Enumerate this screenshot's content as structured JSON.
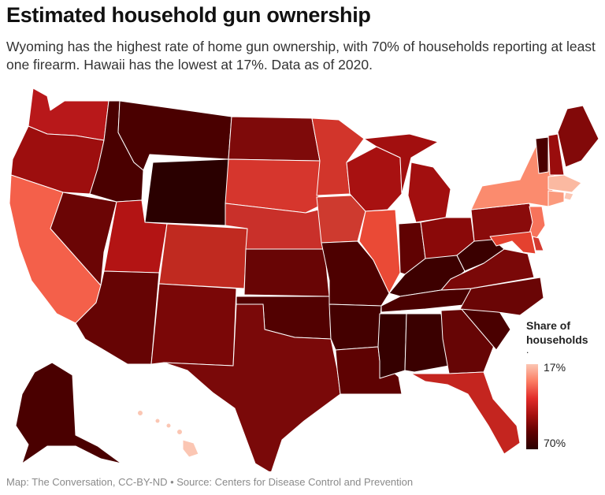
{
  "title": "Estimated household gun ownership",
  "subtitle": "Wyoming has the highest rate of home gun ownership, with 70% of households reporting at least one firearm. Hawaii has the lowest at 17%. Data as of 2020.",
  "legend": {
    "title": "Share of households",
    "dot": ".",
    "min_label": "17%",
    "max_label": "70%"
  },
  "color_scale": [
    "#fbc6b3",
    "#fb7d63",
    "#e22c2a",
    "#a5100f",
    "#5e0000",
    "#2a0000"
  ],
  "source": "Map: The Conversation, CC-BY-ND • Source: Centers for Disease Control and Prevention",
  "states": [
    {
      "name": "Washington",
      "abbr": "WA",
      "color": "#b8181a"
    },
    {
      "name": "Oregon",
      "abbr": "OR",
      "color": "#9d0e0e"
    },
    {
      "name": "California",
      "abbr": "CA",
      "color": "#f4604a"
    },
    {
      "name": "Nevada",
      "abbr": "NV",
      "color": "#6b0505"
    },
    {
      "name": "Idaho",
      "abbr": "ID",
      "color": "#4a0000"
    },
    {
      "name": "Montana",
      "abbr": "MT",
      "color": "#4a0000"
    },
    {
      "name": "Wyoming",
      "abbr": "WY",
      "color": "#2a0000"
    },
    {
      "name": "Utah",
      "abbr": "UT",
      "color": "#b31414"
    },
    {
      "name": "Arizona",
      "abbr": "AZ",
      "color": "#660404"
    },
    {
      "name": "Colorado",
      "abbr": "CO",
      "color": "#c02a20"
    },
    {
      "name": "New Mexico",
      "abbr": "NM",
      "color": "#7a0707"
    },
    {
      "name": "North Dakota",
      "abbr": "ND",
      "color": "#7e0a0a"
    },
    {
      "name": "South Dakota",
      "abbr": "SD",
      "color": "#d6362d"
    },
    {
      "name": "Nebraska",
      "abbr": "NE",
      "color": "#c9302a"
    },
    {
      "name": "Kansas",
      "abbr": "KS",
      "color": "#680505"
    },
    {
      "name": "Oklahoma",
      "abbr": "OK",
      "color": "#520101"
    },
    {
      "name": "Texas",
      "abbr": "TX",
      "color": "#7a0909"
    },
    {
      "name": "Minnesota",
      "abbr": "MN",
      "color": "#d2352b"
    },
    {
      "name": "Iowa",
      "abbr": "IA",
      "color": "#ce3a2f"
    },
    {
      "name": "Missouri",
      "abbr": "MO",
      "color": "#4d0000"
    },
    {
      "name": "Arkansas",
      "abbr": "AR",
      "color": "#440000"
    },
    {
      "name": "Louisiana",
      "abbr": "LA",
      "color": "#5e0202"
    },
    {
      "name": "Wisconsin",
      "abbr": "WI",
      "color": "#a81111"
    },
    {
      "name": "Illinois",
      "abbr": "IL",
      "color": "#ea4a36"
    },
    {
      "name": "Michigan",
      "abbr": "MI",
      "color": "#a20f0f"
    },
    {
      "name": "Indiana",
      "abbr": "IN",
      "color": "#600202"
    },
    {
      "name": "Ohio",
      "abbr": "OH",
      "color": "#8a0909"
    },
    {
      "name": "Kentucky",
      "abbr": "KY",
      "color": "#3d0000"
    },
    {
      "name": "Tennessee",
      "abbr": "TN",
      "color": "#4a0000"
    },
    {
      "name": "Mississippi",
      "abbr": "MS",
      "color": "#350000"
    },
    {
      "name": "Alabama",
      "abbr": "AL",
      "color": "#3a0000"
    },
    {
      "name": "Georgia",
      "abbr": "GA",
      "color": "#660505"
    },
    {
      "name": "Florida",
      "abbr": "FL",
      "color": "#c4251f"
    },
    {
      "name": "South Carolina",
      "abbr": "SC",
      "color": "#4a0000"
    },
    {
      "name": "North Carolina",
      "abbr": "NC",
      "color": "#6a0505"
    },
    {
      "name": "Virginia",
      "abbr": "VA",
      "color": "#7a0808"
    },
    {
      "name": "West Virginia",
      "abbr": "WV",
      "color": "#3a0000"
    },
    {
      "name": "Pennsylvania",
      "abbr": "PA",
      "color": "#8a0b0b"
    },
    {
      "name": "New York",
      "abbr": "NY",
      "color": "#fb8b6e"
    },
    {
      "name": "Vermont",
      "abbr": "VT",
      "color": "#4a0000"
    },
    {
      "name": "New Hampshire",
      "abbr": "NH",
      "color": "#9a0d0d"
    },
    {
      "name": "Maine",
      "abbr": "ME",
      "color": "#820909"
    },
    {
      "name": "Massachusetts",
      "abbr": "MA",
      "color": "#fbb9a1"
    },
    {
      "name": "Rhode Island",
      "abbr": "RI",
      "color": "#fbc6b3"
    },
    {
      "name": "Connecticut",
      "abbr": "CT",
      "color": "#fb9a7d"
    },
    {
      "name": "New Jersey",
      "abbr": "NJ",
      "color": "#f7735b"
    },
    {
      "name": "Delaware",
      "abbr": "DE",
      "color": "#d43a30"
    },
    {
      "name": "Maryland",
      "abbr": "MD",
      "color": "#e4412f"
    },
    {
      "name": "Alaska",
      "abbr": "AK",
      "color": "#4a0000"
    },
    {
      "name": "Hawaii",
      "abbr": "HI",
      "color": "#fbc6b3"
    }
  ]
}
